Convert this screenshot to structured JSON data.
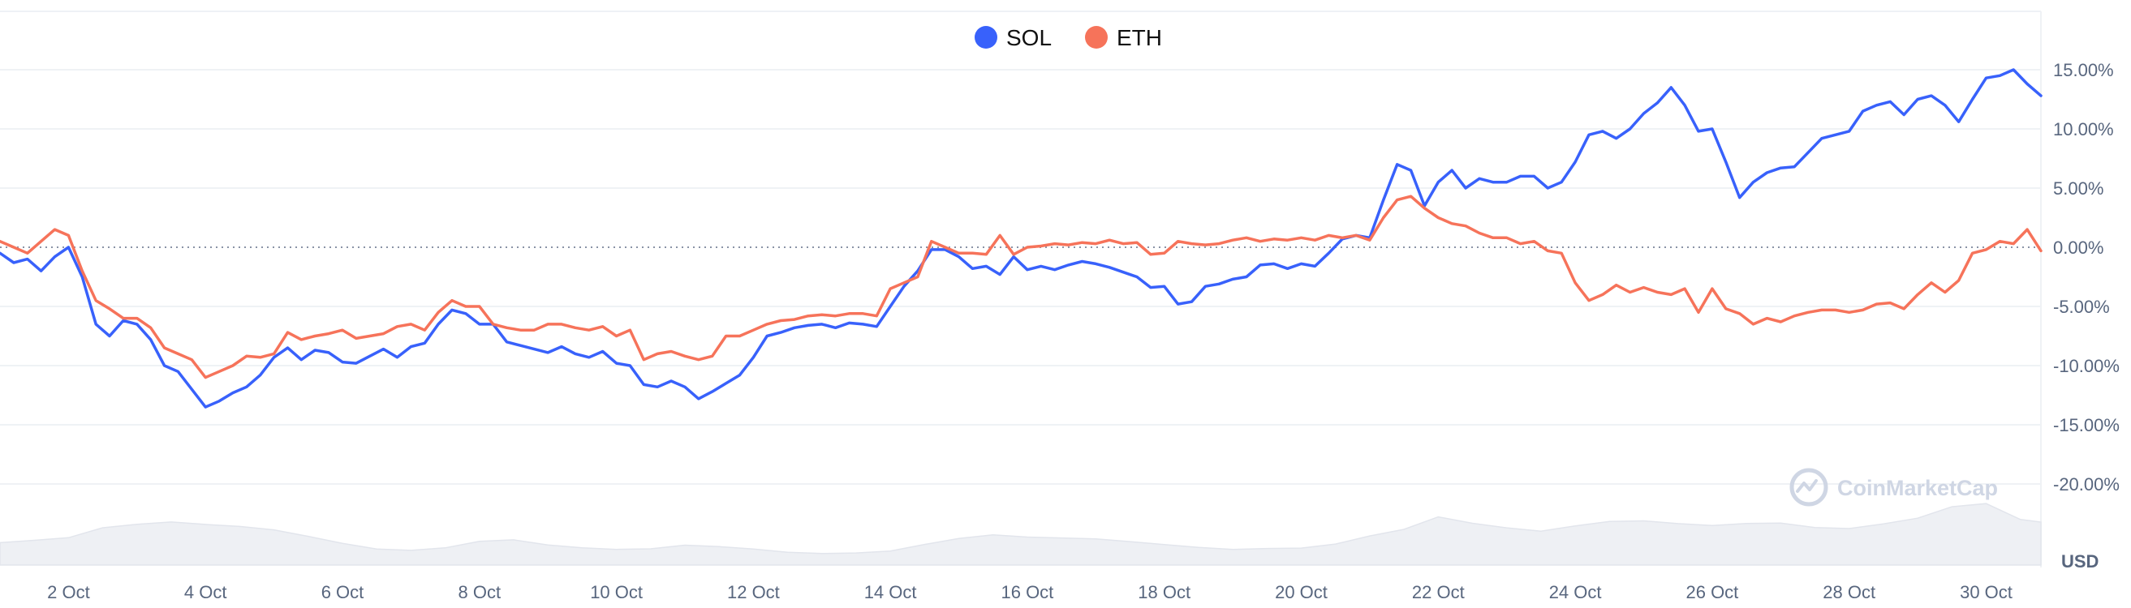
{
  "chart_data": {
    "type": "line",
    "x_ticks": [
      "2 Oct",
      "4 Oct",
      "6 Oct",
      "8 Oct",
      "10 Oct",
      "12 Oct",
      "14 Oct",
      "16 Oct",
      "18 Oct",
      "20 Oct",
      "22 Oct",
      "24 Oct",
      "26 Oct",
      "28 Oct",
      "30 Oct"
    ],
    "y_ticks": [
      "15.00%",
      "10.00%",
      "5.00%",
      "0.00%",
      "-5.00%",
      "-10.00%",
      "-15.00%",
      "-20.00%"
    ],
    "y_tick_values": [
      15,
      10,
      5,
      0,
      -5,
      -10,
      -15,
      -20
    ],
    "ylim": [
      -20,
      20
    ],
    "xlim": [
      1.0,
      30.8
    ],
    "x_unit": "day of October",
    "y_unit": "%",
    "currency_label": "USD",
    "watermark": "CoinMarketCap",
    "legend_position": "top-center",
    "grid": true,
    "zero_line": "dotted",
    "volume_area": true,
    "series": [
      {
        "name": "SOL",
        "color": "#3861fb",
        "x": [
          1.0,
          1.2,
          1.4,
          1.6,
          1.8,
          2.0,
          2.2,
          2.4,
          2.6,
          2.8,
          3.0,
          3.2,
          3.4,
          3.6,
          3.8,
          4.0,
          4.2,
          4.4,
          4.6,
          4.8,
          5.0,
          5.2,
          5.4,
          5.6,
          5.8,
          6.0,
          6.2,
          6.4,
          6.6,
          6.8,
          7.0,
          7.2,
          7.4,
          7.6,
          7.8,
          8.0,
          8.2,
          8.4,
          8.6,
          8.8,
          9.0,
          9.2,
          9.4,
          9.6,
          9.8,
          10.0,
          10.2,
          10.4,
          10.6,
          10.8,
          11.0,
          11.2,
          11.4,
          11.6,
          11.8,
          12.0,
          12.2,
          12.4,
          12.6,
          12.8,
          13.0,
          13.2,
          13.4,
          13.6,
          13.8,
          14.0,
          14.2,
          14.4,
          14.6,
          14.8,
          15.0,
          15.2,
          15.4,
          15.6,
          15.8,
          16.0,
          16.2,
          16.4,
          16.6,
          16.8,
          17.0,
          17.2,
          17.4,
          17.6,
          17.8,
          18.0,
          18.2,
          18.4,
          18.6,
          18.8,
          19.0,
          19.2,
          19.4,
          19.6,
          19.8,
          20.0,
          20.2,
          20.4,
          20.6,
          20.8,
          21.0,
          21.2,
          21.4,
          21.6,
          21.8,
          22.0,
          22.2,
          22.4,
          22.6,
          22.8,
          23.0,
          23.2,
          23.4,
          23.6,
          23.8,
          24.0,
          24.2,
          24.4,
          24.6,
          24.8,
          25.0,
          25.2,
          25.4,
          25.6,
          25.8,
          26.0,
          26.2,
          26.4,
          26.6,
          26.8,
          27.0,
          27.2,
          27.4,
          27.6,
          27.8,
          28.0,
          28.2,
          28.4,
          28.6,
          28.8,
          29.0,
          29.2,
          29.4,
          29.6,
          29.8,
          30.0,
          30.2,
          30.4,
          30.6,
          30.8
        ],
        "values": [
          -0.5,
          -1.3,
          -1.0,
          -2.0,
          -0.8,
          0.0,
          -2.5,
          -6.5,
          -7.5,
          -6.2,
          -6.5,
          -7.8,
          -10.0,
          -10.5,
          -12.0,
          -13.5,
          -13.0,
          -12.3,
          -11.8,
          -10.8,
          -9.3,
          -8.5,
          -9.5,
          -8.7,
          -8.9,
          -9.7,
          -9.8,
          -9.2,
          -8.6,
          -9.3,
          -8.4,
          -8.1,
          -6.5,
          -5.3,
          -5.6,
          -6.5,
          -6.5,
          -8.0,
          -8.3,
          -8.6,
          -8.9,
          -8.4,
          -9.0,
          -9.3,
          -8.8,
          -9.8,
          -10.0,
          -11.6,
          -11.8,
          -11.3,
          -11.8,
          -12.8,
          -12.2,
          -11.5,
          -10.8,
          -9.3,
          -7.5,
          -7.2,
          -6.8,
          -6.6,
          -6.5,
          -6.8,
          -6.4,
          -6.5,
          -6.7,
          -5.0,
          -3.3,
          -2.0,
          -0.2,
          -0.2,
          -0.8,
          -1.8,
          -1.6,
          -2.3,
          -0.8,
          -1.9,
          -1.6,
          -1.9,
          -1.5,
          -1.2,
          -1.4,
          -1.7,
          -2.1,
          -2.5,
          -3.4,
          -3.3,
          -4.8,
          -4.6,
          -3.3,
          -3.1,
          -2.7,
          -2.5,
          -1.5,
          -1.4,
          -1.8,
          -1.4,
          -1.6,
          -0.5,
          0.7,
          1.0,
          0.8,
          4.0,
          7.0,
          6.5,
          3.5,
          5.5,
          6.5,
          5.0,
          5.8,
          5.5,
          5.5,
          6.0,
          6.0,
          5.0,
          5.5,
          7.2,
          9.5,
          9.8,
          9.2,
          10.0,
          11.3,
          12.2,
          13.5,
          12.0,
          9.8,
          10.0,
          7.2,
          4.2,
          5.5,
          6.3,
          6.7,
          6.8,
          8.0,
          9.2,
          9.5,
          9.8,
          11.5,
          12.0,
          12.3,
          11.2,
          12.5,
          12.8,
          12.0,
          10.6,
          12.5,
          14.3,
          14.5,
          15.0,
          13.8,
          12.8
        ]
      },
      {
        "name": "ETH",
        "color": "#f6735a",
        "x": [
          1.0,
          1.2,
          1.4,
          1.6,
          1.8,
          2.0,
          2.2,
          2.4,
          2.6,
          2.8,
          3.0,
          3.2,
          3.4,
          3.6,
          3.8,
          4.0,
          4.2,
          4.4,
          4.6,
          4.8,
          5.0,
          5.2,
          5.4,
          5.6,
          5.8,
          6.0,
          6.2,
          6.4,
          6.6,
          6.8,
          7.0,
          7.2,
          7.4,
          7.6,
          7.8,
          8.0,
          8.2,
          8.4,
          8.6,
          8.8,
          9.0,
          9.2,
          9.4,
          9.6,
          9.8,
          10.0,
          10.2,
          10.4,
          10.6,
          10.8,
          11.0,
          11.2,
          11.4,
          11.6,
          11.8,
          12.0,
          12.2,
          12.4,
          12.6,
          12.8,
          13.0,
          13.2,
          13.4,
          13.6,
          13.8,
          14.0,
          14.2,
          14.4,
          14.6,
          14.8,
          15.0,
          15.2,
          15.4,
          15.6,
          15.8,
          16.0,
          16.2,
          16.4,
          16.6,
          16.8,
          17.0,
          17.2,
          17.4,
          17.6,
          17.8,
          18.0,
          18.2,
          18.4,
          18.6,
          18.8,
          19.0,
          19.2,
          19.4,
          19.6,
          19.8,
          20.0,
          20.2,
          20.4,
          20.6,
          20.8,
          21.0,
          21.2,
          21.4,
          21.6,
          21.8,
          22.0,
          22.2,
          22.4,
          22.6,
          22.8,
          23.0,
          23.2,
          23.4,
          23.6,
          23.8,
          24.0,
          24.2,
          24.4,
          24.6,
          24.8,
          25.0,
          25.2,
          25.4,
          25.6,
          25.8,
          26.0,
          26.2,
          26.4,
          26.6,
          26.8,
          27.0,
          27.2,
          27.4,
          27.6,
          27.8,
          28.0,
          28.2,
          28.4,
          28.6,
          28.8,
          29.0,
          29.2,
          29.4,
          29.6,
          29.8,
          30.0,
          30.2,
          30.4,
          30.6,
          30.8
        ],
        "values": [
          0.5,
          0.0,
          -0.5,
          0.5,
          1.5,
          1.0,
          -2.0,
          -4.5,
          -5.2,
          -6.0,
          -6.0,
          -6.8,
          -8.5,
          -9.0,
          -9.5,
          -11.0,
          -10.5,
          -10.0,
          -9.2,
          -9.3,
          -9.0,
          -7.2,
          -7.8,
          -7.5,
          -7.3,
          -7.0,
          -7.7,
          -7.5,
          -7.3,
          -6.7,
          -6.5,
          -7.0,
          -5.5,
          -4.5,
          -5.0,
          -5.0,
          -6.5,
          -6.8,
          -7.0,
          -7.0,
          -6.5,
          -6.5,
          -6.8,
          -7.0,
          -6.7,
          -7.5,
          -7.0,
          -9.5,
          -9.0,
          -8.8,
          -9.2,
          -9.5,
          -9.2,
          -7.5,
          -7.5,
          -7.0,
          -6.5,
          -6.2,
          -6.1,
          -5.8,
          -5.7,
          -5.8,
          -5.6,
          -5.6,
          -5.8,
          -3.5,
          -3.0,
          -2.5,
          0.5,
          0.0,
          -0.5,
          -0.5,
          -0.6,
          1.0,
          -0.6,
          0.0,
          0.1,
          0.3,
          0.2,
          0.4,
          0.3,
          0.6,
          0.3,
          0.4,
          -0.6,
          -0.5,
          0.5,
          0.3,
          0.2,
          0.3,
          0.6,
          0.8,
          0.5,
          0.7,
          0.6,
          0.8,
          0.6,
          1.0,
          0.8,
          1.0,
          0.6,
          2.5,
          4.0,
          4.3,
          3.3,
          2.5,
          2.0,
          1.8,
          1.2,
          0.8,
          0.8,
          0.3,
          0.5,
          -0.3,
          -0.5,
          -3.0,
          -4.5,
          -4.0,
          -3.2,
          -3.8,
          -3.4,
          -3.8,
          -4.0,
          -3.5,
          -5.5,
          -3.5,
          -5.2,
          -5.6,
          -6.5,
          -6.0,
          -6.3,
          -5.8,
          -5.5,
          -5.3,
          -5.3,
          -5.5,
          -5.3,
          -4.8,
          -4.7,
          -5.2,
          -4.0,
          -3.0,
          -3.8,
          -2.8,
          -0.5,
          -0.2,
          0.5,
          0.3,
          1.5,
          -0.3
        ]
      }
    ],
    "volume_x": [
      1.0,
      1.5,
      2.0,
      2.5,
      3.0,
      3.5,
      4.0,
      4.5,
      5.0,
      5.5,
      6.0,
      6.5,
      7.0,
      7.5,
      8.0,
      8.5,
      9.0,
      9.5,
      10.0,
      10.5,
      11.0,
      11.5,
      12.0,
      12.5,
      13.0,
      13.5,
      14.0,
      14.5,
      15.0,
      15.5,
      16.0,
      16.5,
      17.0,
      17.5,
      18.0,
      18.5,
      19.0,
      19.5,
      20.0,
      20.5,
      21.0,
      21.5,
      22.0,
      22.5,
      23.0,
      23.5,
      24.0,
      24.5,
      25.0,
      25.5,
      26.0,
      26.5,
      27.0,
      27.5,
      28.0,
      28.5,
      29.0,
      29.5,
      30.0,
      30.5,
      30.8
    ],
    "volume_level": [
      0.35,
      0.36,
      0.4,
      0.58,
      0.66,
      0.7,
      0.64,
      0.58,
      0.52,
      0.44,
      0.36,
      0.28,
      0.24,
      0.25,
      0.34,
      0.38,
      0.33,
      0.3,
      0.26,
      0.24,
      0.28,
      0.27,
      0.26,
      0.23,
      0.2,
      0.18,
      0.19,
      0.3,
      0.42,
      0.5,
      0.46,
      0.42,
      0.38,
      0.34,
      0.32,
      0.3,
      0.27,
      0.26,
      0.24,
      0.3,
      0.45,
      0.58,
      0.78,
      0.66,
      0.56,
      0.5,
      0.6,
      0.7,
      0.72,
      0.66,
      0.6,
      0.62,
      0.64,
      0.6,
      0.6,
      0.66,
      0.72,
      0.88,
      0.94,
      0.72,
      0.7
    ]
  }
}
